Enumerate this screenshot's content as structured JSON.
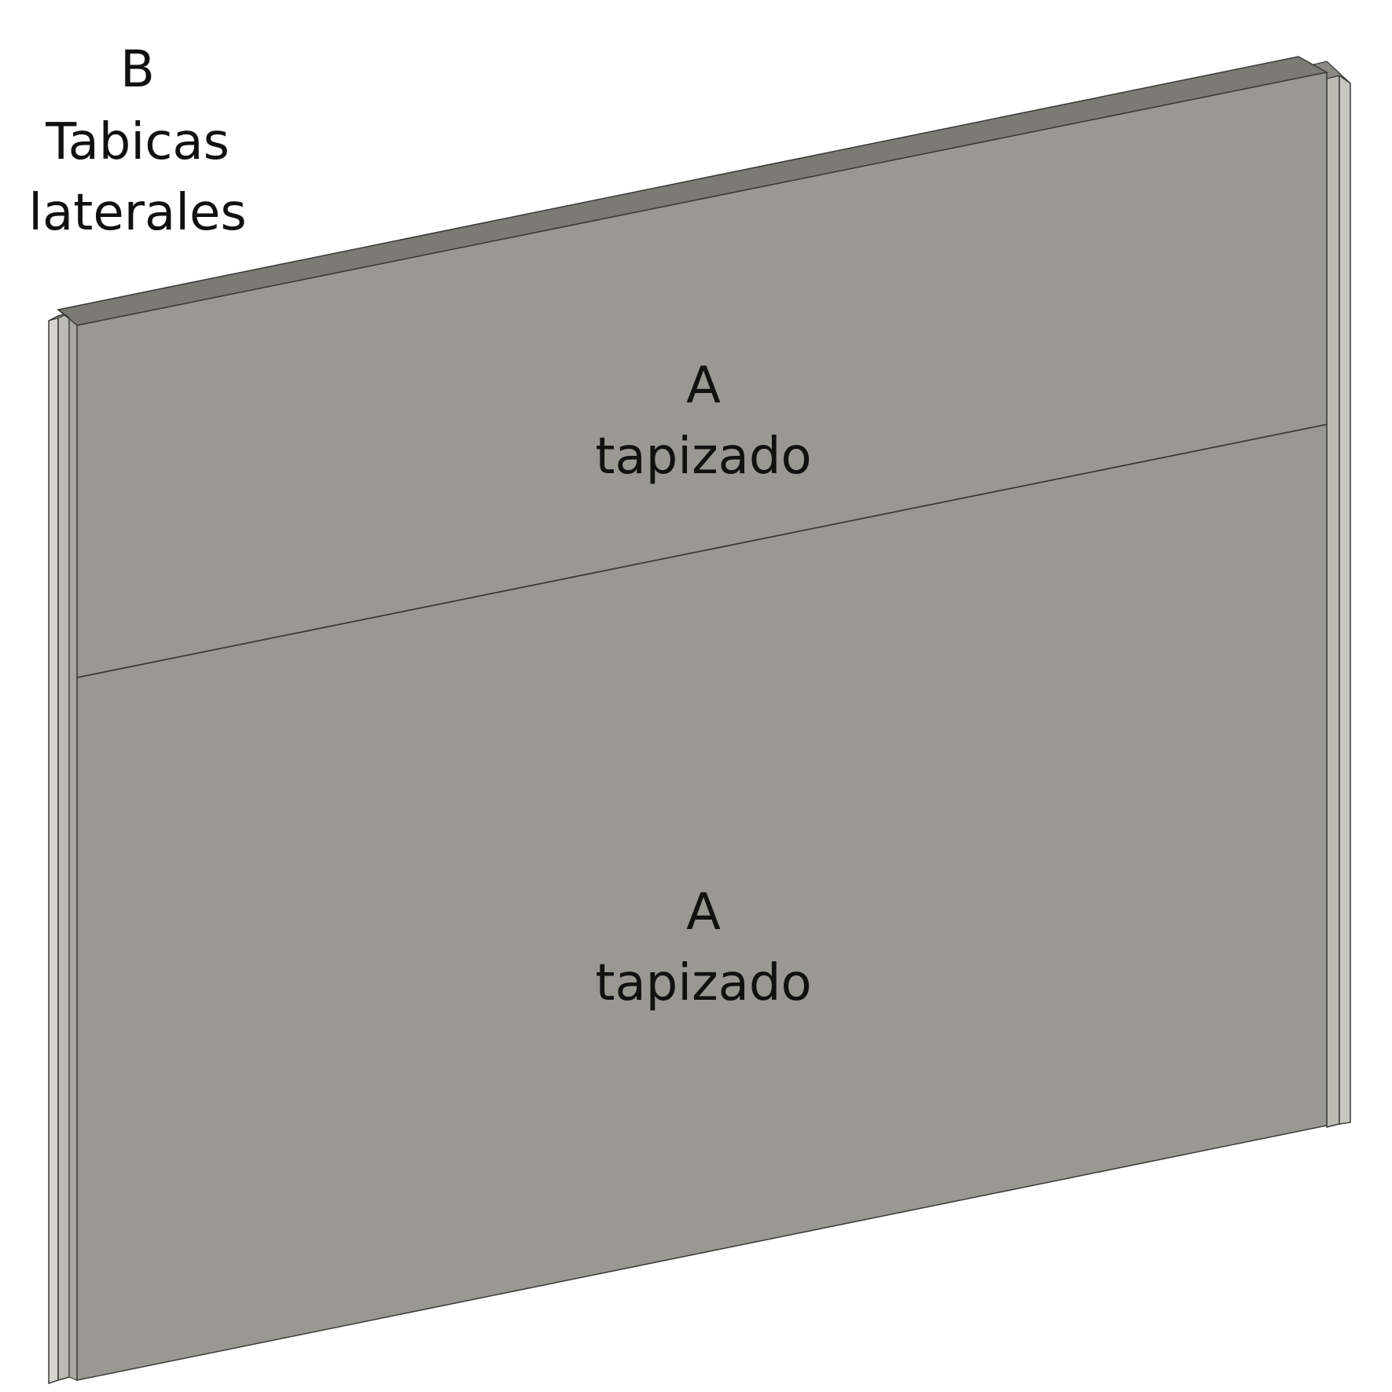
{
  "diagram": {
    "side_label": {
      "letter": "B",
      "line1": "Tabicas",
      "line2": "laterales"
    },
    "upper_panel": {
      "letter": "A",
      "text": "tapizado"
    },
    "lower_panel": {
      "letter": "A",
      "text": "tapizado"
    }
  },
  "colors": {
    "panel_face": "#9a9892",
    "panel_top": "#7b7a73",
    "side_strip_front": "#bcbbb3",
    "side_strip_side": "#d6d5cd",
    "edge_line": "#3a3a37",
    "background": "#ffffff",
    "text": "#111111"
  }
}
